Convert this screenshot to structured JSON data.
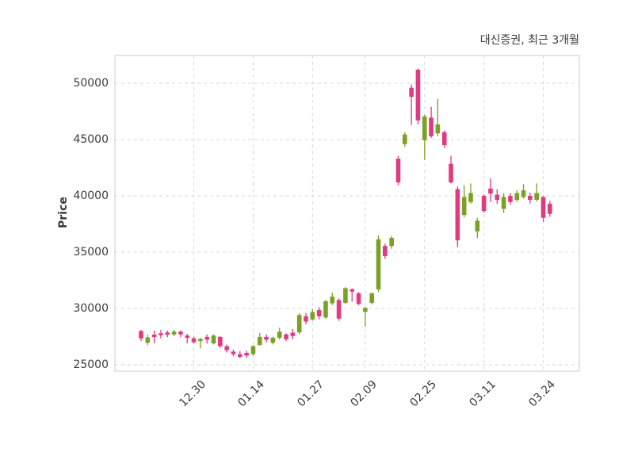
{
  "header": {
    "title": "대신증권, 최근 3개월"
  },
  "chart_data": {
    "type": "candlestick",
    "title": "대신증권, 최근 3개월",
    "ylabel": "Price",
    "y_ticks": [
      25000,
      30000,
      35000,
      40000,
      45000,
      50000
    ],
    "ylim": [
      24400,
      52500
    ],
    "x_tick_labels": [
      "12.30",
      "01.14",
      "01.27",
      "02.09",
      "02.25",
      "03.11",
      "03.24"
    ],
    "x_tick_indices": [
      8,
      17,
      26,
      34,
      43,
      52,
      61
    ],
    "grid": true,
    "grid_style": "dashed",
    "legend_position": "none",
    "up_color": "#7ca024",
    "down_color": "#e03a82",
    "grid_color": "#d9d9d9",
    "spine_color": "#cccccc",
    "text_color": "#3c3c3c",
    "ohlc_order": [
      "open",
      "high",
      "low",
      "close"
    ],
    "candles": [
      [
        28000,
        28100,
        27100,
        27350
      ],
      [
        26950,
        27670,
        26750,
        27430
      ],
      [
        27680,
        28030,
        26910,
        27450
      ],
      [
        27800,
        28100,
        27350,
        27630
      ],
      [
        27870,
        28050,
        27450,
        27680
      ],
      [
        27700,
        28100,
        27550,
        27950
      ],
      [
        27950,
        28050,
        27450,
        27700
      ],
      [
        27600,
        27750,
        26900,
        27400
      ],
      [
        27350,
        27500,
        26900,
        27000
      ],
      [
        27100,
        27400,
        26450,
        27300
      ],
      [
        27470,
        27700,
        26880,
        27230
      ],
      [
        26900,
        27700,
        26800,
        27600
      ],
      [
        27470,
        27550,
        26500,
        26650
      ],
      [
        26650,
        26800,
        26100,
        26300
      ],
      [
        26170,
        26350,
        25750,
        25940
      ],
      [
        25940,
        26200,
        25570,
        25700
      ],
      [
        26060,
        26250,
        25600,
        25820
      ],
      [
        25940,
        26750,
        25800,
        26650
      ],
      [
        26760,
        27820,
        26700,
        27470
      ],
      [
        27470,
        27700,
        27000,
        27230
      ],
      [
        26950,
        27500,
        26800,
        27400
      ],
      [
        27400,
        28300,
        27250,
        27950
      ],
      [
        27700,
        27800,
        27100,
        27270
      ],
      [
        27850,
        28170,
        27250,
        27550
      ],
      [
        27880,
        29590,
        27690,
        29420
      ],
      [
        29310,
        29590,
        28610,
        28840
      ],
      [
        29030,
        29930,
        28900,
        29690
      ],
      [
        29850,
        30110,
        29030,
        29310
      ],
      [
        29200,
        30750,
        29100,
        30650
      ],
      [
        30460,
        31400,
        30300,
        31050
      ],
      [
        30750,
        30900,
        28900,
        29100
      ],
      [
        30500,
        31900,
        30400,
        31800
      ],
      [
        31700,
        31800,
        30600,
        31500
      ],
      [
        31350,
        31450,
        30300,
        30400
      ],
      [
        29700,
        30150,
        28400,
        30050
      ],
      [
        30500,
        31400,
        30350,
        31350
      ],
      [
        31700,
        36500,
        31450,
        36150
      ],
      [
        35550,
        35750,
        34400,
        34650
      ],
      [
        35550,
        36450,
        35300,
        36270
      ],
      [
        43300,
        43550,
        40950,
        41200
      ],
      [
        44600,
        45650,
        44350,
        45450
      ],
      [
        49600,
        49900,
        46300,
        48800
      ],
      [
        51200,
        51300,
        46350,
        46700
      ],
      [
        44950,
        47200,
        43200,
        47050
      ],
      [
        46950,
        47900,
        45150,
        45300
      ],
      [
        45550,
        48600,
        45300,
        46350
      ],
      [
        45650,
        45800,
        44250,
        44500
      ],
      [
        42850,
        43550,
        41100,
        41200
      ],
      [
        40600,
        40850,
        35450,
        36050
      ],
      [
        38300,
        40950,
        38100,
        39900
      ],
      [
        39450,
        41100,
        39300,
        40250
      ],
      [
        36850,
        38050,
        36250,
        37800
      ],
      [
        40000,
        40150,
        38500,
        38650
      ],
      [
        40650,
        41550,
        39450,
        40200
      ],
      [
        40100,
        40600,
        39300,
        39650
      ],
      [
        38850,
        40250,
        38500,
        39900
      ],
      [
        40000,
        40250,
        39200,
        39450
      ],
      [
        39650,
        40500,
        39450,
        40250
      ],
      [
        39900,
        41050,
        39750,
        40500
      ],
      [
        40000,
        40280,
        39320,
        39650
      ],
      [
        39650,
        41100,
        39500,
        40250
      ],
      [
        39900,
        40000,
        37680,
        38050
      ],
      [
        39300,
        39550,
        38150,
        38400
      ]
    ]
  }
}
